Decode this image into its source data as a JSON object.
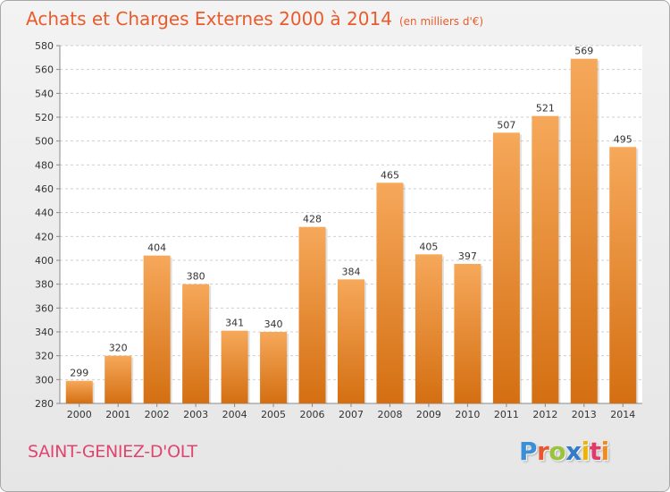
{
  "header": {
    "title": "Achats et Charges Externes 2000 à 2014",
    "unit": "(en milliers d'€)"
  },
  "footer": {
    "city": "SAINT-GENIEZ-D'OLT",
    "logo": "Proxiti",
    "logo_colors": [
      "#3a8fd8",
      "#e8562f",
      "#9ac43c",
      "#2f7cc9",
      "#f0b400",
      "#e03a6a",
      "#f28b1e"
    ]
  },
  "colors": {
    "accent": "#ea5b2b",
    "city": "#e0456e",
    "bar_light": "#f6a85a",
    "bar_dark": "#d46f12"
  },
  "chart_data": {
    "type": "bar",
    "title": "Achats et Charges Externes 2000 à 2014",
    "subtitle": "(en milliers d'€)",
    "categories": [
      "2000",
      "2001",
      "2002",
      "2003",
      "2004",
      "2005",
      "2006",
      "2007",
      "2008",
      "2009",
      "2010",
      "2011",
      "2012",
      "2013",
      "2014"
    ],
    "values": [
      299,
      320,
      404,
      380,
      341,
      340,
      428,
      384,
      465,
      405,
      397,
      507,
      521,
      569,
      495
    ],
    "ylim": [
      280,
      580
    ],
    "yticks": [
      280,
      300,
      320,
      340,
      360,
      380,
      400,
      420,
      440,
      460,
      480,
      500,
      520,
      540,
      560,
      580
    ],
    "grid": true,
    "xlabel": "",
    "ylabel": ""
  }
}
